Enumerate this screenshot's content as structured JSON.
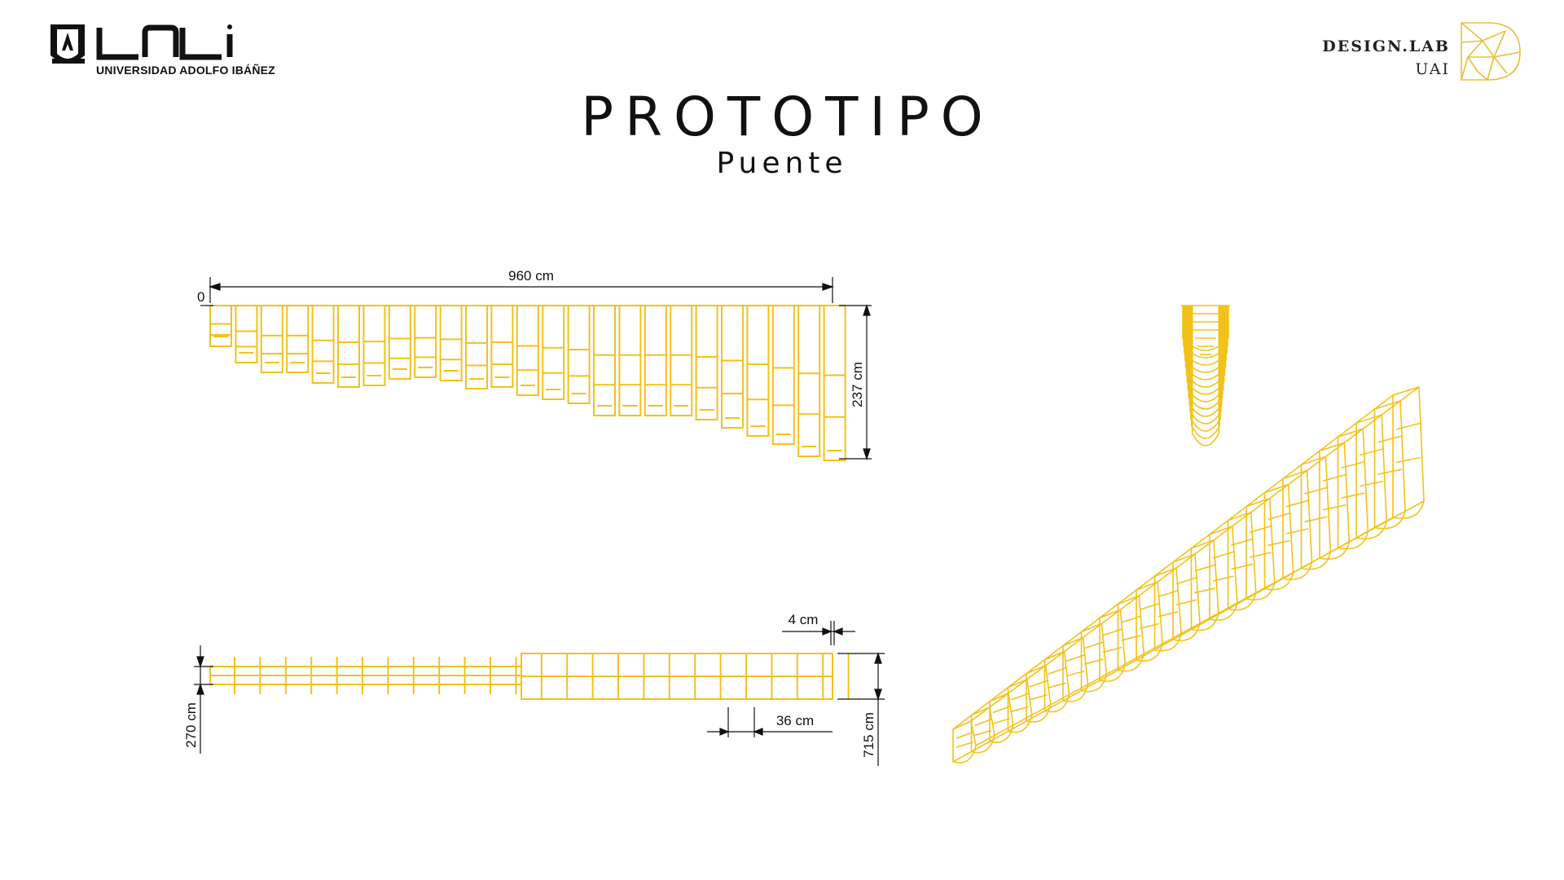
{
  "header": {
    "university_name": "UNIVERSIDAD ADOLFO IBÁÑEZ",
    "lab_name": "DESIGN.LAB",
    "lab_sub": "UAI"
  },
  "title": "PROTOTIPO",
  "subtitle": "Puente",
  "dimensions": {
    "origin": "0",
    "length": "960 cm",
    "height": "237 cm",
    "width_min": "270 cm",
    "width_max": "715 cm",
    "rib_thickness": "4 cm",
    "rib_spacing": "36 cm"
  },
  "colors": {
    "structure": "#F2C21B",
    "ink": "#111111"
  },
  "icons": [
    "uai-crest-icon",
    "uai-wordmark-icon",
    "design-lab-d-icon"
  ]
}
